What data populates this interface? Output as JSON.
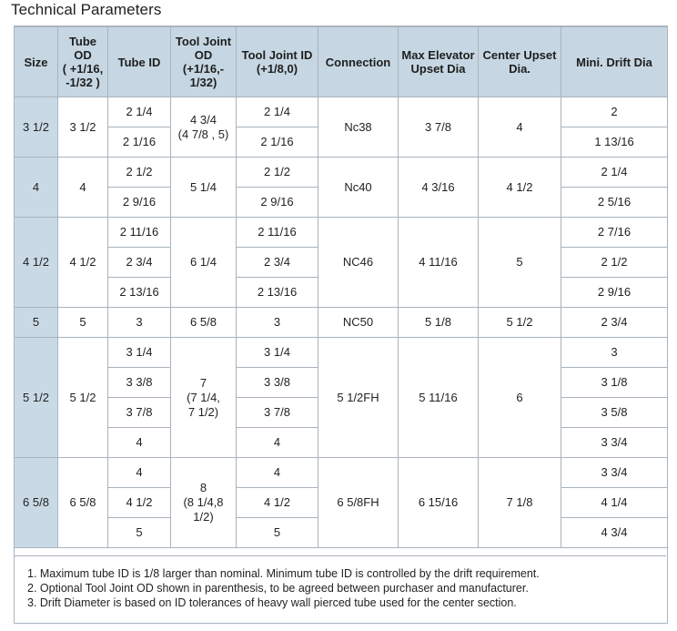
{
  "title": "Technical Parameters",
  "headers": {
    "size": "Size",
    "tube_od": [
      "Tube",
      "OD",
      "( +1/16,",
      "-1/32 )"
    ],
    "tube_id": "Tube ID",
    "tool_joint_od": [
      "Tool Joint",
      "OD",
      "(+1/16,-",
      "1/32)"
    ],
    "tool_joint_id": [
      "Tool Joint ID",
      "(+1/8,0)"
    ],
    "connection": "Connection",
    "max_elevator": [
      "Max Elevator",
      "Upset Dia"
    ],
    "center_upset": [
      "Center Upset",
      "Dia."
    ],
    "mini_drift": "Mini. Drift Dia"
  },
  "groups": [
    {
      "size": "3 1/2",
      "tube_od": "3 1/2",
      "tool_joint_od": [
        "4 3/4",
        "(4 7/8 , 5)"
      ],
      "connection": "Nc38",
      "max_elevator": "3 7/8",
      "center_upset": "4",
      "rows": [
        {
          "tube_id": "2 1/4",
          "tool_joint_id": "2 1/4",
          "drift": "2"
        },
        {
          "tube_id": "2 1/16",
          "tool_joint_id": "2 1/16",
          "drift": "1 13/16"
        }
      ]
    },
    {
      "size": "4",
      "tube_od": "4",
      "tool_joint_od": [
        "5 1/4"
      ],
      "connection": "Nc40",
      "max_elevator": "4 3/16",
      "center_upset": "4 1/2",
      "rows": [
        {
          "tube_id": "2 1/2",
          "tool_joint_id": "2 1/2",
          "drift": "2 1/4"
        },
        {
          "tube_id": "2 9/16",
          "tool_joint_id": "2 9/16",
          "drift": "2 5/16"
        }
      ]
    },
    {
      "size": "4 1/2",
      "tube_od": "4 1/2",
      "tool_joint_od": [
        "6 1/4"
      ],
      "connection": "NC46",
      "max_elevator": "4 11/16",
      "center_upset": "5",
      "rows": [
        {
          "tube_id": "2 11/16",
          "tool_joint_id": "2 11/16",
          "drift": "2 7/16"
        },
        {
          "tube_id": "2 3/4",
          "tool_joint_id": "2 3/4",
          "drift": "2 1/2"
        },
        {
          "tube_id": "2 13/16",
          "tool_joint_id": "2 13/16",
          "drift": "2 9/16"
        }
      ]
    },
    {
      "size": "5",
      "tube_od": "5",
      "tool_joint_od": [
        "6 5/8"
      ],
      "connection": "NC50",
      "max_elevator": "5 1/8",
      "center_upset": "5 1/2",
      "rows": [
        {
          "tube_id": "3",
          "tool_joint_id": "3",
          "drift": "2 3/4"
        }
      ]
    },
    {
      "size": "5 1/2",
      "tube_od": "5 1/2",
      "tool_joint_od": [
        "7",
        "(7 1/4,",
        "7 1/2)"
      ],
      "connection": "5 1/2FH",
      "max_elevator": "5 11/16",
      "center_upset": "6",
      "rows": [
        {
          "tube_id": "3 1/4",
          "tool_joint_id": "3 1/4",
          "drift": "3"
        },
        {
          "tube_id": "3 3/8",
          "tool_joint_id": "3 3/8",
          "drift": "3 1/8"
        },
        {
          "tube_id": "3 7/8",
          "tool_joint_id": "3 7/8",
          "drift": "3 5/8"
        },
        {
          "tube_id": "4",
          "tool_joint_id": "4",
          "drift": "3 3/4"
        }
      ]
    },
    {
      "size": "6 5/8",
      "tube_od": "6 5/8",
      "tool_joint_od": [
        "8",
        "(8 1/4,8",
        "1/2)"
      ],
      "connection": "6 5/8FH",
      "max_elevator": "6 15/16",
      "center_upset": "7 1/8",
      "rows": [
        {
          "tube_id": "4",
          "tool_joint_id": "4",
          "drift": "3 3/4"
        },
        {
          "tube_id": "4 1/2",
          "tool_joint_id": "4 1/2",
          "drift": "4 1/4"
        },
        {
          "tube_id": "5",
          "tool_joint_id": "5",
          "drift": "4 3/4"
        }
      ]
    }
  ],
  "notes": [
    "1. Maximum tube ID is 1/8 larger than nominal. Minimum tube ID is controlled by the drift requirement.",
    "2. Optional Tool Joint OD shown in parenthesis, to be agreed between purchaser and manufacturer.",
    "3. Drift Diameter is based on ID tolerances of heavy wall pierced tube used for the center section."
  ],
  "colors": {
    "header_bg": "#c6d7e3",
    "size_col_bg": "#c9dae6",
    "border": "#a9b3bc"
  }
}
